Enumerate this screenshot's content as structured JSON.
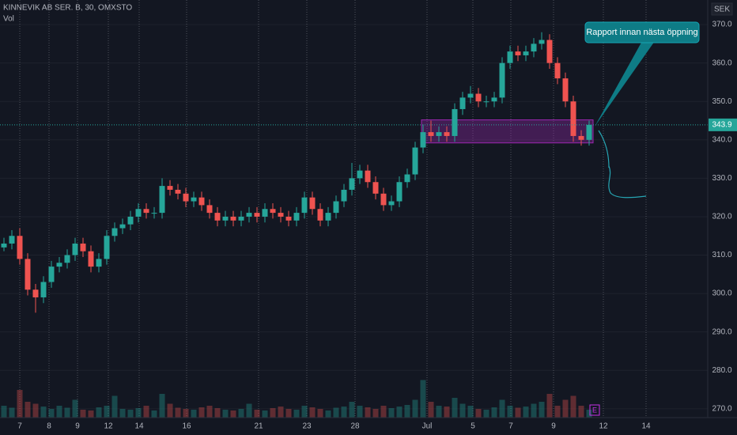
{
  "chart_data": {
    "type": "candlestick",
    "title": "KINNEVIK AB SER. B, 30, OMXSTO",
    "volume_label": "Vol",
    "currency": "SEK",
    "callout": "Rapport innan nästa öppning",
    "earnings_marker": "E",
    "up_color": "#26a69a",
    "down_color": "#ef5350",
    "open": [
      312,
      313,
      315,
      309,
      301,
      299,
      303,
      307,
      308,
      310,
      313,
      311,
      307,
      309,
      315,
      317,
      318,
      320,
      322,
      321,
      321,
      328,
      327,
      326,
      324,
      325,
      323,
      321,
      319,
      320,
      319,
      320,
      321,
      320,
      322,
      321,
      320,
      319,
      321,
      325,
      322,
      319,
      321,
      324,
      327,
      330,
      332,
      329,
      326,
      323,
      324,
      329,
      331,
      338,
      342,
      341,
      342,
      341,
      348,
      351,
      352,
      350,
      350,
      351,
      360,
      363,
      362,
      363,
      365,
      366,
      360,
      356,
      350,
      341,
      340
    ],
    "high": [
      314.5,
      316.5,
      317,
      310.5,
      302.5,
      304.5,
      308.5,
      309.5,
      311.5,
      314.5,
      314.5,
      312.5,
      310.5,
      316.5,
      318.5,
      319.5,
      321.5,
      323.5,
      323.5,
      322.5,
      330,
      329.5,
      328.5,
      327.5,
      326.5,
      326.5,
      324.5,
      322.5,
      321.5,
      321.5,
      321.5,
      322.5,
      322.5,
      323.5,
      323.5,
      322.5,
      321.5,
      322.5,
      326.5,
      326.5,
      323.5,
      322.5,
      325.5,
      328.5,
      334,
      333.5,
      333.5,
      330.5,
      327.5,
      325.5,
      330.5,
      332.5,
      339.5,
      344,
      345,
      343.5,
      343.5,
      349.5,
      352.5,
      354,
      353.5,
      351.5,
      352.5,
      361.5,
      364.5,
      364.5,
      364.5,
      366.5,
      368,
      367.5,
      361.5,
      357.5,
      351.5,
      342.5,
      345
    ],
    "low": [
      311,
      311.5,
      307.5,
      299.5,
      295,
      297.5,
      301.5,
      305.5,
      306.5,
      308.5,
      309.5,
      305.5,
      305.5,
      307.5,
      313.5,
      315.5,
      316.5,
      318.5,
      319.5,
      319.5,
      319.5,
      325.5,
      324.5,
      322.5,
      322.5,
      321.5,
      319.5,
      317.5,
      317.5,
      317.5,
      317.5,
      318.5,
      318.5,
      318.5,
      319.5,
      318.5,
      317.5,
      317.5,
      319.5,
      320.5,
      317.5,
      317.5,
      319.5,
      322.5,
      325.5,
      328.5,
      327.5,
      324.5,
      321.5,
      321.5,
      322.5,
      327.5,
      329.5,
      336.5,
      339.5,
      339.5,
      339.5,
      339.5,
      346.5,
      349.5,
      348.5,
      348.5,
      348.5,
      349.5,
      358.5,
      360.5,
      360.5,
      361.5,
      363.5,
      358.5,
      354.5,
      348.5,
      339.5,
      338.5,
      338.5
    ],
    "close": [
      313,
      315,
      309,
      301,
      299,
      303,
      307,
      308,
      310,
      313,
      311,
      307,
      309,
      315,
      317,
      318,
      320,
      322,
      321,
      321,
      328,
      327,
      326,
      324,
      325,
      323,
      321,
      319,
      320,
      319,
      320,
      321,
      320,
      322,
      321,
      320,
      319,
      321,
      325,
      322,
      319,
      321,
      324,
      327,
      330,
      332,
      329,
      326,
      323,
      324,
      329,
      331,
      338,
      342,
      341,
      342,
      341,
      348,
      351,
      352,
      350,
      350,
      351,
      360,
      363,
      362,
      363,
      365,
      366,
      360,
      356,
      350,
      341,
      340,
      343.9
    ],
    "volume": [
      30,
      25,
      70,
      40,
      35,
      28,
      22,
      30,
      25,
      45,
      20,
      18,
      26,
      30,
      55,
      22,
      20,
      24,
      30,
      18,
      60,
      35,
      25,
      22,
      20,
      26,
      30,
      24,
      20,
      18,
      22,
      35,
      20,
      18,
      24,
      28,
      22,
      20,
      30,
      26,
      22,
      18,
      25,
      28,
      40,
      30,
      26,
      22,
      30,
      24,
      28,
      32,
      45,
      95,
      40,
      30,
      28,
      50,
      35,
      30,
      22,
      20,
      26,
      45,
      30,
      25,
      28,
      35,
      40,
      60,
      30,
      45,
      55,
      30,
      20
    ],
    "vlim": [
      0,
      200
    ],
    "zone": {
      "start": 52.8,
      "end": 74.5,
      "low": 339.2,
      "high": 345.2
    },
    "xlim": [
      -0.5,
      89
    ],
    "xticks": [
      {
        "value": 2,
        "label": "7"
      },
      {
        "value": 5.7,
        "label": "8"
      },
      {
        "value": 9.3,
        "label": "9"
      },
      {
        "value": 13.2,
        "label": "12"
      },
      {
        "value": 17.1,
        "label": "14"
      },
      {
        "value": 23.1,
        "label": "16"
      },
      {
        "value": 32.2,
        "label": "21"
      },
      {
        "value": 38.3,
        "label": "23"
      },
      {
        "value": 44.4,
        "label": "28"
      },
      {
        "value": 53.5,
        "label": "Jul"
      },
      {
        "value": 59.3,
        "label": "5"
      },
      {
        "value": 64.1,
        "label": "7"
      },
      {
        "value": 69.5,
        "label": "9"
      },
      {
        "value": 75.8,
        "label": "12"
      },
      {
        "value": 81.2,
        "label": "14"
      }
    ],
    "ylim": [
      267.7,
      376.4
    ],
    "yticks": [
      {
        "value": 270,
        "label": "270.0"
      },
      {
        "value": 280,
        "label": "280.0"
      },
      {
        "value": 290,
        "label": "290.0"
      },
      {
        "value": 300,
        "label": "300.0"
      },
      {
        "value": 310,
        "label": "310.0"
      },
      {
        "value": 320,
        "label": "320.0"
      },
      {
        "value": 330,
        "label": "330.0"
      },
      {
        "value": 340,
        "label": "340.0"
      },
      {
        "value": 350,
        "label": "350.0"
      },
      {
        "value": 360,
        "label": "360.0"
      },
      {
        "value": 370,
        "label": "370.0"
      }
    ],
    "grid": true
  }
}
